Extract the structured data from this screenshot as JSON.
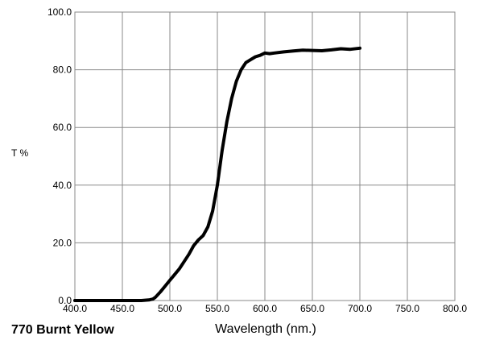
{
  "chart_data": {
    "type": "line",
    "title": "770 Burnt Yellow",
    "xlabel": "Wavelength (nm.)",
    "ylabel": "T %",
    "xlim": [
      400,
      800
    ],
    "ylim": [
      0,
      100
    ],
    "grid": true,
    "legend": "none",
    "x_ticks": [
      "400.0",
      "450.0",
      "500.0",
      "550.0",
      "600.0",
      "650.0",
      "700.0",
      "750.0",
      "800.0"
    ],
    "y_ticks": [
      "0.0",
      "20.0",
      "40.0",
      "60.0",
      "80.0",
      "100.0"
    ],
    "x_tick_values": [
      400,
      450,
      500,
      550,
      600,
      650,
      700,
      750,
      800
    ],
    "y_tick_values": [
      0,
      20,
      40,
      60,
      80,
      100
    ],
    "line_color": "#000000",
    "grid_color": "#888888",
    "series": [
      {
        "x": [
          400,
          420,
          440,
          460,
          470,
          478,
          482,
          485,
          490,
          495,
          500,
          505,
          510,
          515,
          520,
          525,
          530,
          535,
          540,
          545,
          550,
          555,
          560,
          565,
          570,
          575,
          580,
          585,
          590,
          595,
          600,
          605,
          610,
          620,
          630,
          640,
          650,
          660,
          670,
          680,
          690,
          700
        ],
        "y": [
          0.0,
          0.0,
          0.0,
          0.0,
          0.0,
          0.2,
          0.5,
          1.2,
          3.0,
          5.0,
          7.0,
          9.0,
          11.0,
          13.5,
          16.0,
          19.0,
          21.0,
          22.5,
          25.5,
          31.0,
          40.0,
          52.0,
          62.0,
          70.0,
          76.0,
          80.0,
          82.5,
          83.5,
          84.5,
          85.0,
          85.8,
          85.6,
          85.8,
          86.2,
          86.5,
          86.8,
          86.7,
          86.6,
          86.9,
          87.3,
          87.1,
          87.5
        ]
      }
    ]
  }
}
